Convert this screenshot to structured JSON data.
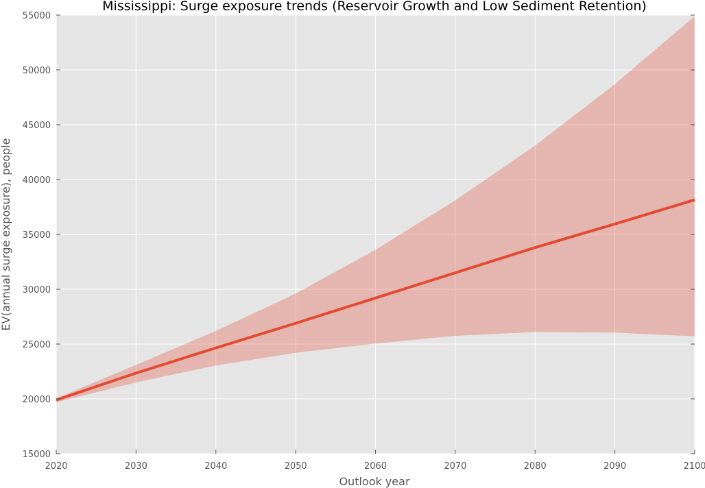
{
  "chart_data": {
    "type": "area",
    "title": "Mississippi: Surge exposure trends (Reservoir Growth and Low Sediment Retention)",
    "xlabel": "Outlook year",
    "ylabel": "EV(annual surge exposure), people",
    "xlim": [
      2020,
      2100
    ],
    "ylim": [
      15000,
      55000
    ],
    "xticks": [
      2020,
      2030,
      2040,
      2050,
      2060,
      2070,
      2080,
      2090,
      2100
    ],
    "yticks": [
      15000,
      20000,
      25000,
      30000,
      35000,
      40000,
      45000,
      50000,
      55000
    ],
    "grid": true,
    "x": [
      2020,
      2030,
      2040,
      2050,
      2060,
      2070,
      2080,
      2090,
      2100
    ],
    "series": [
      {
        "values": [
          19900,
          22350,
          24650,
          26900,
          29200,
          31500,
          33800,
          35950,
          38150
        ],
        "lower": [
          19700,
          21500,
          23050,
          24200,
          25050,
          25750,
          26100,
          26050,
          25700
        ],
        "upper": [
          20050,
          23100,
          26200,
          29600,
          33600,
          38100,
          43100,
          48700,
          54900
        ],
        "line_color": "#e24a33",
        "band_color": "#e24a33"
      }
    ],
    "background_color": "#e5e5e5",
    "grid_color": "#ffffff"
  }
}
